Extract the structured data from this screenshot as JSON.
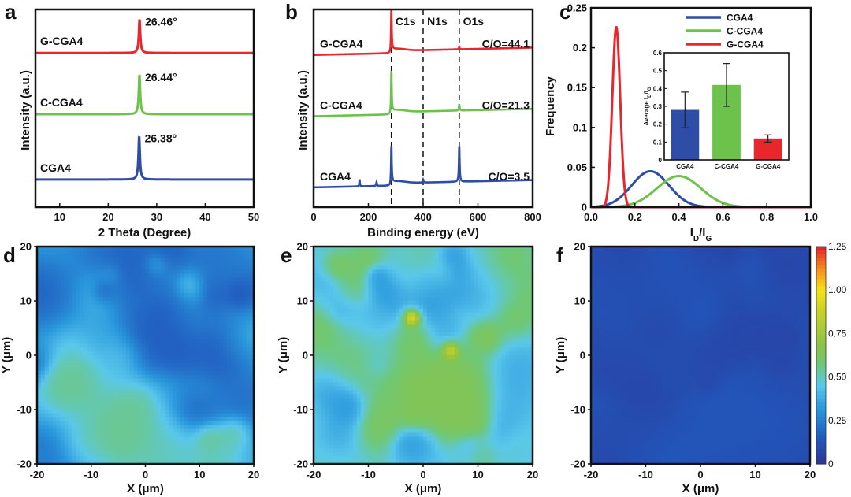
{
  "chart_data": [
    {
      "panel": "a",
      "type": "line",
      "xlabel": "2 Theta (Degree)",
      "ylabel": "Intensity (a.u.)",
      "xlim": [
        5,
        50
      ],
      "xticks": [
        10,
        20,
        30,
        40,
        50
      ],
      "series": [
        {
          "name": "G-CGA4",
          "color": "#e8262b",
          "peak_x": 26.46,
          "peak_label": "26.46°",
          "baseline": 0.78,
          "peak_height": 0.17
        },
        {
          "name": "C-CGA4",
          "color": "#6cc24a",
          "peak_x": 26.44,
          "peak_label": "26.44°",
          "baseline": 0.47,
          "peak_height": 0.2
        },
        {
          "name": "CGA4",
          "color": "#2e4da7",
          "peak_x": 26.38,
          "peak_label": "26.38°",
          "baseline": 0.14,
          "peak_height": 0.22
        }
      ]
    },
    {
      "panel": "b",
      "type": "line",
      "xlabel": "Binding energy (eV)",
      "ylabel": "Intensity (a.u.)",
      "xlim": [
        0,
        800
      ],
      "xticks": [
        0,
        200,
        400,
        600,
        800
      ],
      "annotations": [
        {
          "label": "C1s",
          "x": 284
        },
        {
          "label": "N1s",
          "x": 400
        },
        {
          "label": "O1s",
          "x": 532
        }
      ],
      "series": [
        {
          "name": "G-CGA4",
          "color": "#e8262b",
          "ratio_label": "C/O=44.1",
          "baseline": 0.77,
          "c1s": 0.22,
          "o1s": 0.012
        },
        {
          "name": "C-CGA4",
          "color": "#6cc24a",
          "ratio_label": "C/O=21.3",
          "baseline": 0.46,
          "c1s": 0.22,
          "o1s": 0.03
        },
        {
          "name": "CGA4",
          "color": "#2e4da7",
          "ratio_label": "C/O=3.5",
          "baseline": 0.1,
          "c1s": 0.2,
          "o1s": 0.18
        }
      ]
    },
    {
      "panel": "c",
      "type": "line",
      "xlabel": "I_D/I_G",
      "ylabel": "Frequency",
      "xlim": [
        0,
        1.0
      ],
      "ylim": [
        0,
        0.25
      ],
      "xticks": [
        0.0,
        0.2,
        0.4,
        0.6,
        0.8,
        1.0
      ],
      "yticks": [
        0,
        0.05,
        0.1,
        0.15,
        0.2,
        0.25
      ],
      "series": [
        {
          "name": "CGA4",
          "color": "#2e4da7",
          "mean": 0.27,
          "peak": 0.045,
          "sd": 0.085
        },
        {
          "name": "C-CGA4",
          "color": "#6cc24a",
          "mean": 0.4,
          "peak": 0.039,
          "sd": 0.1
        },
        {
          "name": "G-CGA4",
          "color": "#e8262b",
          "mean": 0.115,
          "peak": 0.226,
          "sd": 0.018
        }
      ],
      "inset": {
        "type": "bar",
        "ylabel": "Average I_D/I_G",
        "ylim": [
          0,
          0.6
        ],
        "yticks": [
          0,
          0.1,
          0.2,
          0.3,
          0.4,
          0.5,
          0.6
        ],
        "categories": [
          "CGA4",
          "C-CGA4",
          "G-CGA4"
        ],
        "values": [
          0.28,
          0.42,
          0.12
        ],
        "errors": [
          0.1,
          0.12,
          0.02
        ],
        "colors": [
          "#2e4da7",
          "#6cc24a",
          "#e8262b"
        ]
      }
    },
    {
      "panel": "d",
      "type": "heatmap",
      "xlabel": "X (μm)",
      "ylabel": "Y (μm)",
      "xlim": [
        -20,
        20
      ],
      "ylim": [
        -20,
        20
      ],
      "xticks": [
        -20,
        -10,
        0,
        10,
        20
      ],
      "yticks": [
        -20,
        -10,
        0,
        10,
        20
      ],
      "typical_value": 0.35,
      "variation": 0.2,
      "seed": 11
    },
    {
      "panel": "e",
      "type": "heatmap",
      "xlabel": "X (μm)",
      "ylabel": "Y (μm)",
      "xlim": [
        -20,
        20
      ],
      "ylim": [
        -20,
        20
      ],
      "xticks": [
        -20,
        -10,
        0,
        10,
        20
      ],
      "yticks": [
        -20,
        -10,
        0,
        10,
        20
      ],
      "typical_value": 0.48,
      "variation": 0.17,
      "hotspots": [
        {
          "x": -2,
          "y": 7,
          "value": 0.95
        },
        {
          "x": 5,
          "y": 1,
          "value": 0.8
        }
      ],
      "seed": 29
    },
    {
      "panel": "f",
      "type": "heatmap",
      "xlabel": "X (μm)",
      "ylabel": "Y (μm)",
      "xlim": [
        -20,
        20
      ],
      "ylim": [
        -20,
        20
      ],
      "xticks": [
        -20,
        -10,
        0,
        10,
        20
      ],
      "yticks": [
        -20,
        -10,
        0,
        10,
        20
      ],
      "typical_value": 0.1,
      "variation": 0.03,
      "seed": 47,
      "colorbar": {
        "min": 0,
        "max": 1.25,
        "ticks": [
          "0",
          "0.25",
          "0.50",
          "0.75",
          "1.00",
          "1.25"
        ]
      }
    }
  ]
}
